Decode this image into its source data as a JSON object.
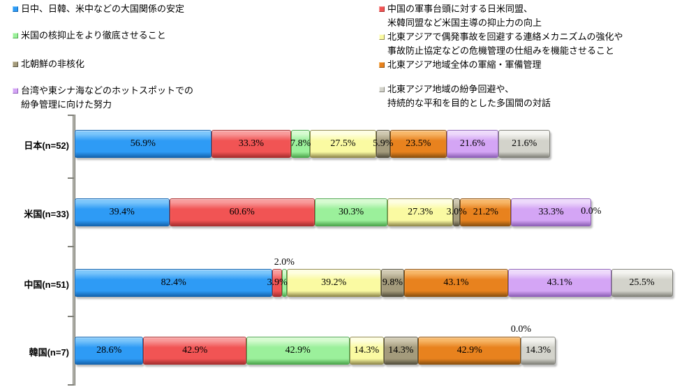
{
  "chart_data": {
    "type": "bar",
    "variant": "horizontal-stacked-multiresponse",
    "title": "",
    "xlabel": "",
    "ylabel": "",
    "value_format": "percent-one-decimal",
    "grid": false,
    "legend_position": "top-two-columns",
    "categories": [
      "日本(n=52)",
      "米国(n=33)",
      "中国(n=51)",
      "韓国(n=7)"
    ],
    "series": [
      {
        "name": "日中、日韓、米中などの大国関係の安定",
        "values": [
          56.9,
          39.4,
          82.4,
          28.6
        ],
        "colors": {
          "light": "#7cc6fb",
          "main": "#2e9bf5",
          "dark": "#1565b0"
        }
      },
      {
        "name": "中国の軍事台頭に対する日米同盟、\n米韓同盟など米国主導の抑止力の向上",
        "values": [
          33.3,
          60.6,
          3.9,
          42.9
        ],
        "colors": {
          "light": "#f89b9b",
          "main": "#f15454",
          "dark": "#a93030"
        }
      },
      {
        "name": "米国の核抑止をより徹底させること",
        "values": [
          7.8,
          30.3,
          2.0,
          42.9
        ],
        "colors": {
          "light": "#d6fbd0",
          "main": "#9bf09b",
          "dark": "#4fa84f"
        }
      },
      {
        "name": "北東アジアで偶発事故を回避する連絡メカニズムの強化や\n事故防止協定などの危機管理の仕組みを機能させること",
        "values": [
          27.5,
          27.3,
          39.2,
          14.3
        ],
        "colors": {
          "light": "#fefee0",
          "main": "#fafaa2",
          "dark": "#948d50"
        }
      },
      {
        "name": "北朝鮮の非核化",
        "values": [
          5.9,
          3.0,
          9.8,
          14.3
        ],
        "colors": {
          "light": "#cfc8b0",
          "main": "#a49b7c",
          "dark": "#57523f"
        }
      },
      {
        "name": "北東アジア地域全体の軍縮・軍備管理",
        "values": [
          23.5,
          21.2,
          43.1,
          42.9
        ],
        "colors": {
          "light": "#f7b768",
          "main": "#e8821e",
          "dark": "#8f5310"
        }
      },
      {
        "name": "台湾や東シナ海などのホットスポットでの\n紛争管理に向けた努力",
        "values": [
          21.6,
          33.3,
          43.1,
          0.0
        ],
        "colors": {
          "light": "#edd9fb",
          "main": "#d4a5f5",
          "dark": "#8f62b8"
        }
      },
      {
        "name": "北東アジア地域の紛争回避や、\n持続的な平和を目的とした多国間の対話",
        "values": [
          21.6,
          0.0,
          25.5,
          14.3
        ],
        "colors": {
          "light": "#f4f4f0",
          "main": "#d3d3cb",
          "dark": "#84847c"
        }
      }
    ],
    "label_above": [
      [],
      [],
      [
        2
      ],
      [
        6
      ]
    ],
    "legend_left_series": [
      0,
      2,
      4,
      6
    ],
    "legend_right_series": [
      1,
      3,
      5,
      7
    ]
  }
}
